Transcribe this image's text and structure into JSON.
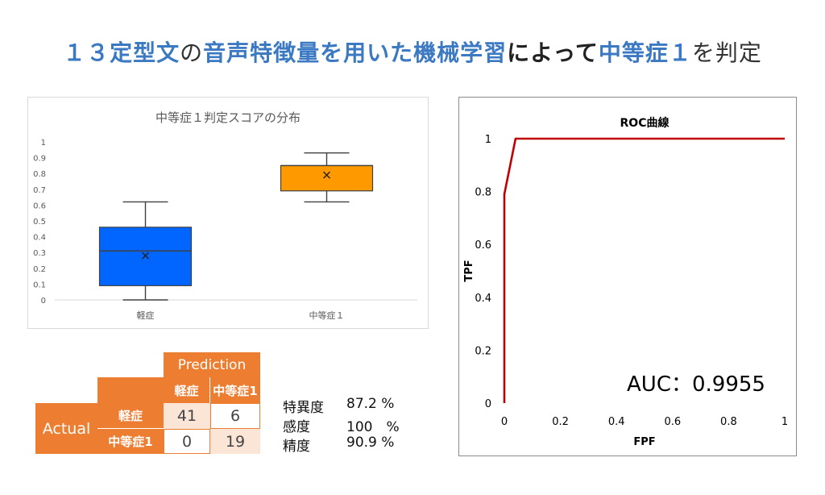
{
  "title": {
    "p1": "１３定型文",
    "p2": "の",
    "p3": "音声特徴量を用いた機械学習",
    "p4": "によって",
    "p5": "中等症１",
    "p6": "を判定"
  },
  "colors": {
    "title_blue": "#3b79c2",
    "box_blue": "#0066ff",
    "box_orange": "#ff9900",
    "roc_line": "#c00000",
    "matrix_orange": "#ed7d31",
    "matrix_light": "#fbe5d6"
  },
  "chart_data": [
    {
      "type": "box",
      "title": "中等症１判定スコアの分布",
      "categories": [
        "軽症",
        "中等症１"
      ],
      "ylim": [
        0,
        1
      ],
      "yticks": [
        "0",
        "0.1",
        "0.2",
        "0.3",
        "0.4",
        "0.5",
        "0.6",
        "0.7",
        "0.8",
        "0.9",
        "1"
      ],
      "grid": false,
      "boxes": [
        {
          "name": "軽症",
          "min": 0.0,
          "q1": 0.09,
          "median": 0.31,
          "q3": 0.46,
          "max": 0.62,
          "mean": 0.28,
          "color": "#0066ff"
        },
        {
          "name": "中等症１",
          "min": 0.62,
          "q1": 0.69,
          "median": 0.85,
          "q3": 0.85,
          "max": 0.93,
          "mean": 0.79,
          "color": "#ff9900"
        }
      ]
    },
    {
      "type": "line",
      "title": "ROC曲線",
      "xlabel": "FPF",
      "ylabel": "TPF",
      "xlim": [
        0,
        1
      ],
      "ylim": [
        0,
        1
      ],
      "xticks": [
        "0",
        "0.2",
        "0.4",
        "0.6",
        "0.8",
        "1"
      ],
      "yticks": [
        "0",
        "0.2",
        "0.4",
        "0.6",
        "0.8",
        "1"
      ],
      "grid": false,
      "series": [
        {
          "x": [
            0,
            0,
            0.04,
            1
          ],
          "y": [
            0,
            0.79,
            1,
            1
          ],
          "color": "#c00000"
        }
      ],
      "annotation": "AUC：0.9955"
    }
  ],
  "confusion_matrix": {
    "prediction_label": "Prediction",
    "actual_label": "Actual",
    "col_headers": [
      "軽症",
      "中等症1"
    ],
    "row_headers": [
      "軽症",
      "中等症1"
    ],
    "cells": [
      [
        "41",
        "6"
      ],
      [
        "0",
        "19"
      ]
    ]
  },
  "metrics": [
    {
      "label": "特異度",
      "value": "87.2 %"
    },
    {
      "label": "感度",
      "value": "100　%"
    },
    {
      "label": "精度",
      "value": "90.9 %"
    }
  ]
}
